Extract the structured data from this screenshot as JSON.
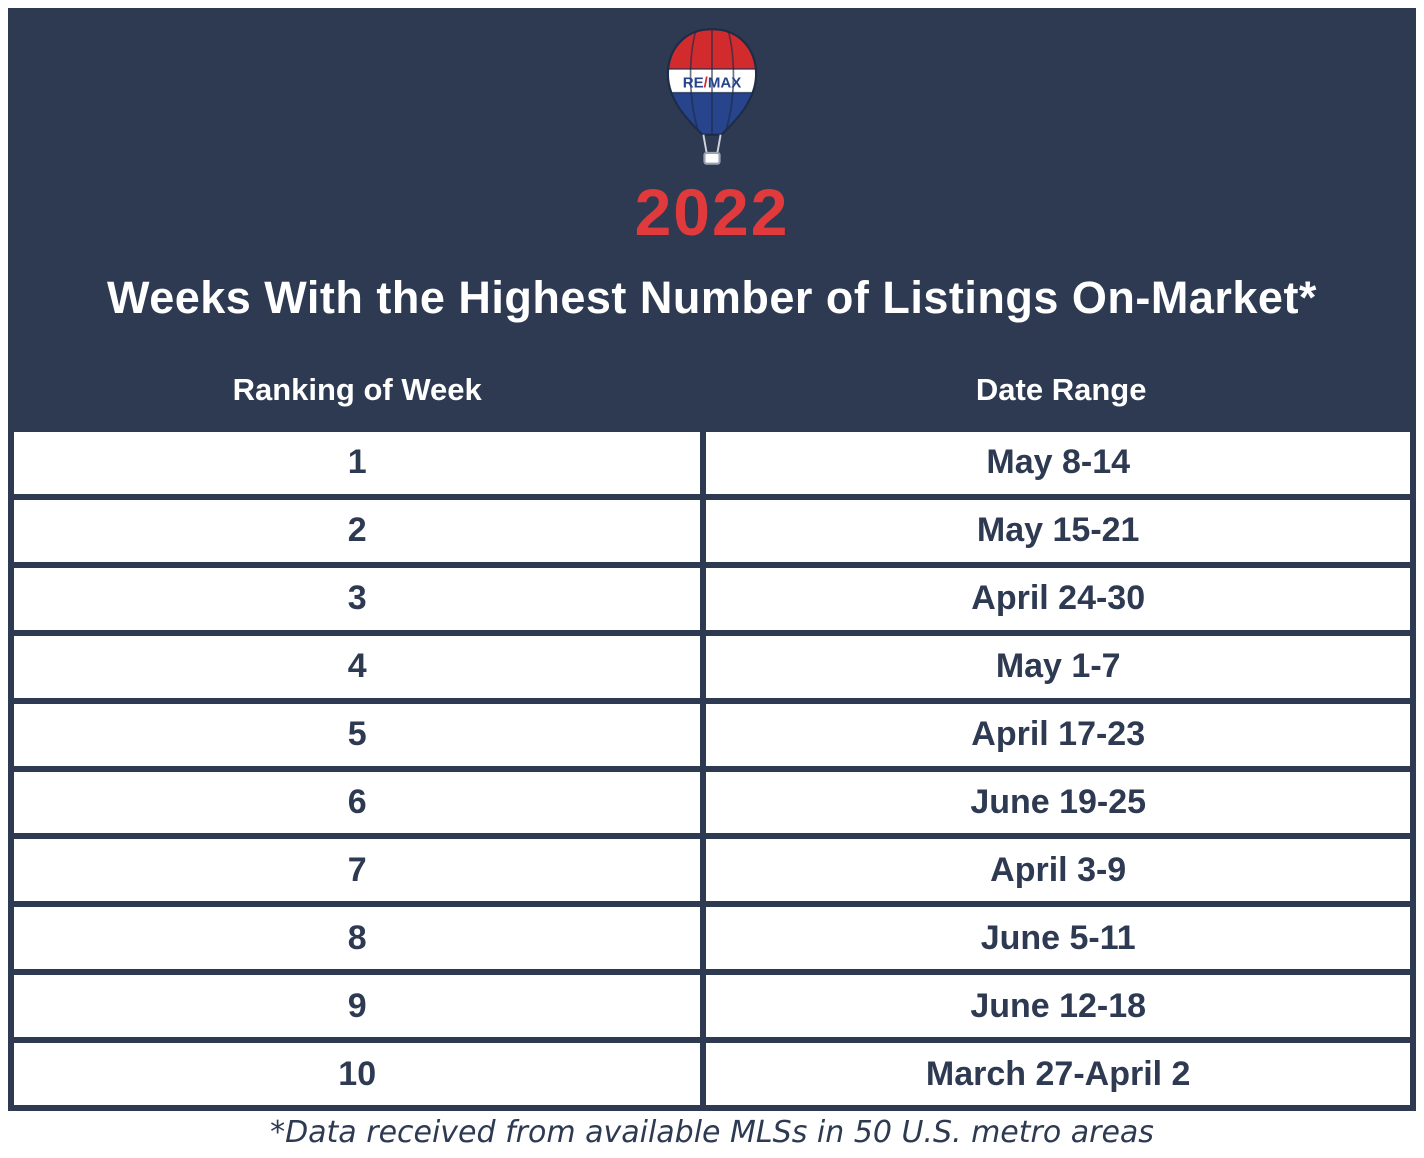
{
  "colors": {
    "navy": "#2d3a52",
    "red": "#e03a3c",
    "white": "#ffffff",
    "balloon_red": "#d22b2e",
    "balloon_blue": "#27448c"
  },
  "header": {
    "logo": "remax-balloon-icon",
    "logo_text": "RE/MAX",
    "year": "2022",
    "title": "Weeks With the Highest Number of Listings On-Market*"
  },
  "table": {
    "columns": [
      "Ranking of Week",
      "Date Range"
    ],
    "rows": [
      {
        "rank": "1",
        "date_range": "May 8-14"
      },
      {
        "rank": "2",
        "date_range": "May 15-21"
      },
      {
        "rank": "3",
        "date_range": "April 24-30"
      },
      {
        "rank": "4",
        "date_range": "May 1-7"
      },
      {
        "rank": "5",
        "date_range": "April 17-23"
      },
      {
        "rank": "6",
        "date_range": "June 19-25"
      },
      {
        "rank": "7",
        "date_range": "April 3-9"
      },
      {
        "rank": "8",
        "date_range": "June 5-11"
      },
      {
        "rank": "9",
        "date_range": "June 12-18"
      },
      {
        "rank": "10",
        "date_range": "March 27-April 2"
      }
    ]
  },
  "footer": {
    "note": "*Data received from available MLSs in 50 U.S. metro areas"
  },
  "chart_data": {
    "type": "table",
    "title": "2022 Weeks With the Highest Number of Listings On-Market*",
    "columns": [
      "Ranking of Week",
      "Date Range"
    ],
    "rows": [
      [
        "1",
        "May 8-14"
      ],
      [
        "2",
        "May 15-21"
      ],
      [
        "3",
        "April 24-30"
      ],
      [
        "4",
        "May 1-7"
      ],
      [
        "5",
        "April 17-23"
      ],
      [
        "6",
        "June 19-25"
      ],
      [
        "7",
        "April 3-9"
      ],
      [
        "8",
        "June 5-11"
      ],
      [
        "9",
        "June 12-18"
      ],
      [
        "10",
        "March 27-April 2"
      ]
    ],
    "footnote": "*Data received from available MLSs in 50 U.S. metro areas"
  }
}
